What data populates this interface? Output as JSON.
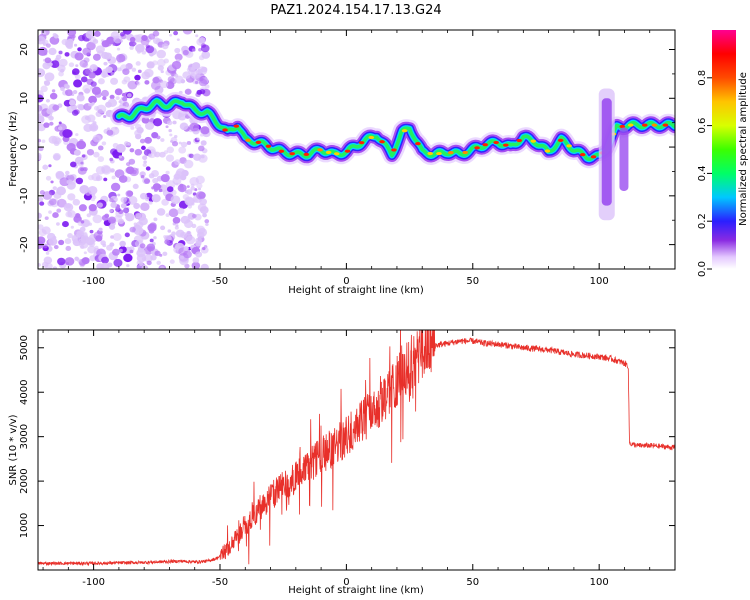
{
  "title": "PAZ1.2024.154.17.13.G24",
  "colors": {
    "snr_line": "#e8302a",
    "axis": "#000000"
  },
  "chart_data": [
    {
      "type": "heatmap",
      "xlabel": "Height of straight line (km)",
      "ylabel": "Frequency (Hz)",
      "xlim": [
        -122,
        130
      ],
      "ylim": [
        -25,
        24
      ],
      "xticks": [
        -100,
        -50,
        0,
        50,
        100
      ],
      "yticks": [
        20,
        10,
        0,
        -10,
        -20
      ],
      "colorbar": {
        "label": "Normalized spectral amplitude",
        "range": [
          0.0,
          1.0
        ],
        "ticks": [
          0.0,
          0.2,
          0.4,
          0.6,
          0.8
        ]
      },
      "ridge": {
        "x": [
          -90,
          -85,
          -80,
          -75,
          -70,
          -65,
          -60,
          -55,
          -50,
          -47,
          -43,
          -40,
          -35,
          -30,
          -25,
          -20,
          -15,
          -10,
          -5,
          0,
          3,
          8,
          12,
          15,
          18,
          22,
          25,
          30,
          35,
          40,
          45,
          50,
          55,
          60,
          65,
          70,
          75,
          80,
          85,
          90,
          95,
          100,
          103,
          107,
          112,
          118,
          125,
          130
        ],
        "y": [
          6,
          6.5,
          8,
          9,
          8.5,
          9.5,
          7.5,
          7,
          4.5,
          3,
          4.5,
          1.5,
          1,
          0,
          -1,
          -1.5,
          -1.5,
          -0.5,
          -1.5,
          -1,
          0,
          1.5,
          2.5,
          0.5,
          -1.5,
          3,
          4,
          -1,
          -1.5,
          -1,
          -1.5,
          -0.5,
          0.5,
          1,
          0,
          2,
          1,
          -1,
          1.5,
          -0.5,
          -2,
          -2,
          0,
          4,
          4.5,
          4.5,
          4.5,
          4.5
        ]
      },
      "noise_region_x": [
        -122,
        -55
      ],
      "spike_x": 103
    },
    {
      "type": "line",
      "xlabel": "Height of straight line (km)",
      "ylabel": "SNR (10 * v/v)",
      "xlim": [
        -122,
        130
      ],
      "ylim": [
        0,
        5400
      ],
      "xticks": [
        -100,
        -50,
        0,
        50,
        100
      ],
      "yticks": [
        1000,
        2000,
        3000,
        4000,
        5000
      ],
      "x": [
        -122,
        -100,
        -80,
        -65,
        -60,
        -55,
        -52,
        -50,
        -48,
        -45,
        -40,
        -35,
        -30,
        -25,
        -20,
        -15,
        -10,
        -5,
        0,
        5,
        10,
        15,
        20,
        25,
        30,
        35,
        40,
        45,
        50,
        55,
        60,
        70,
        80,
        90,
        100,
        105,
        110,
        111.5,
        112,
        115,
        120,
        125,
        130
      ],
      "y": [
        150,
        150,
        170,
        200,
        180,
        200,
        250,
        300,
        450,
        600,
        1000,
        1350,
        1650,
        1900,
        2100,
        2300,
        2600,
        2750,
        3000,
        3350,
        3550,
        3900,
        4300,
        4600,
        4900,
        5050,
        5100,
        5150,
        5150,
        5100,
        5080,
        5000,
        4950,
        4850,
        4800,
        4750,
        4650,
        4600,
        2850,
        2800,
        2800,
        2780,
        2750
      ]
    }
  ]
}
